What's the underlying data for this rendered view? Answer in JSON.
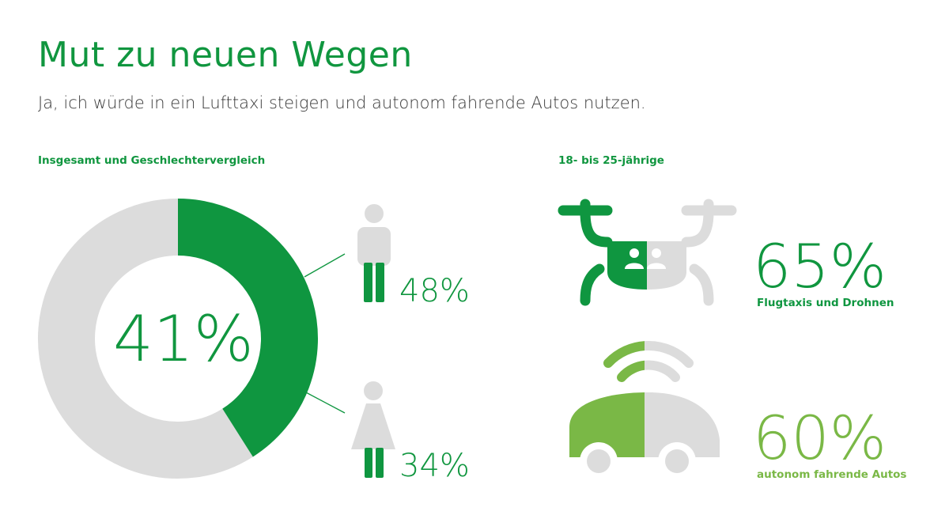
{
  "header": {
    "title": "Mut zu neuen Wegen",
    "subtitle": "Ja, ich würde in ein Lufttaxi steigen und autonom fahrende Autos nutzen."
  },
  "sections": {
    "left_label": "Insgesamt und Geschlechtervergleich",
    "right_label": "18- bis 25-jährige"
  },
  "colors": {
    "green": "#0f9640",
    "light_green": "#7ab846",
    "gray": "#dcdcdc"
  },
  "chart_data": [
    {
      "type": "pie",
      "subtype": "donut",
      "title": "Insgesamt und Geschlechtervergleich",
      "total": {
        "value": 41,
        "label": "41%"
      },
      "breakdown": [
        {
          "icon": "man-icon",
          "value": 48,
          "label": "48%"
        },
        {
          "icon": "woman-icon",
          "value": 34,
          "label": "34%"
        }
      ]
    },
    {
      "type": "bar",
      "subtype": "icon-fill",
      "title": "18- bis 25-jährige",
      "items": [
        {
          "icon": "drone-icon",
          "value": 65,
          "label": "65%",
          "caption": "Flugtaxis und Drohnen",
          "color": "#0f9640"
        },
        {
          "icon": "car-icon",
          "value": 60,
          "label": "60%",
          "caption": "autonom fahrende Autos",
          "color": "#7ab846"
        }
      ]
    }
  ]
}
